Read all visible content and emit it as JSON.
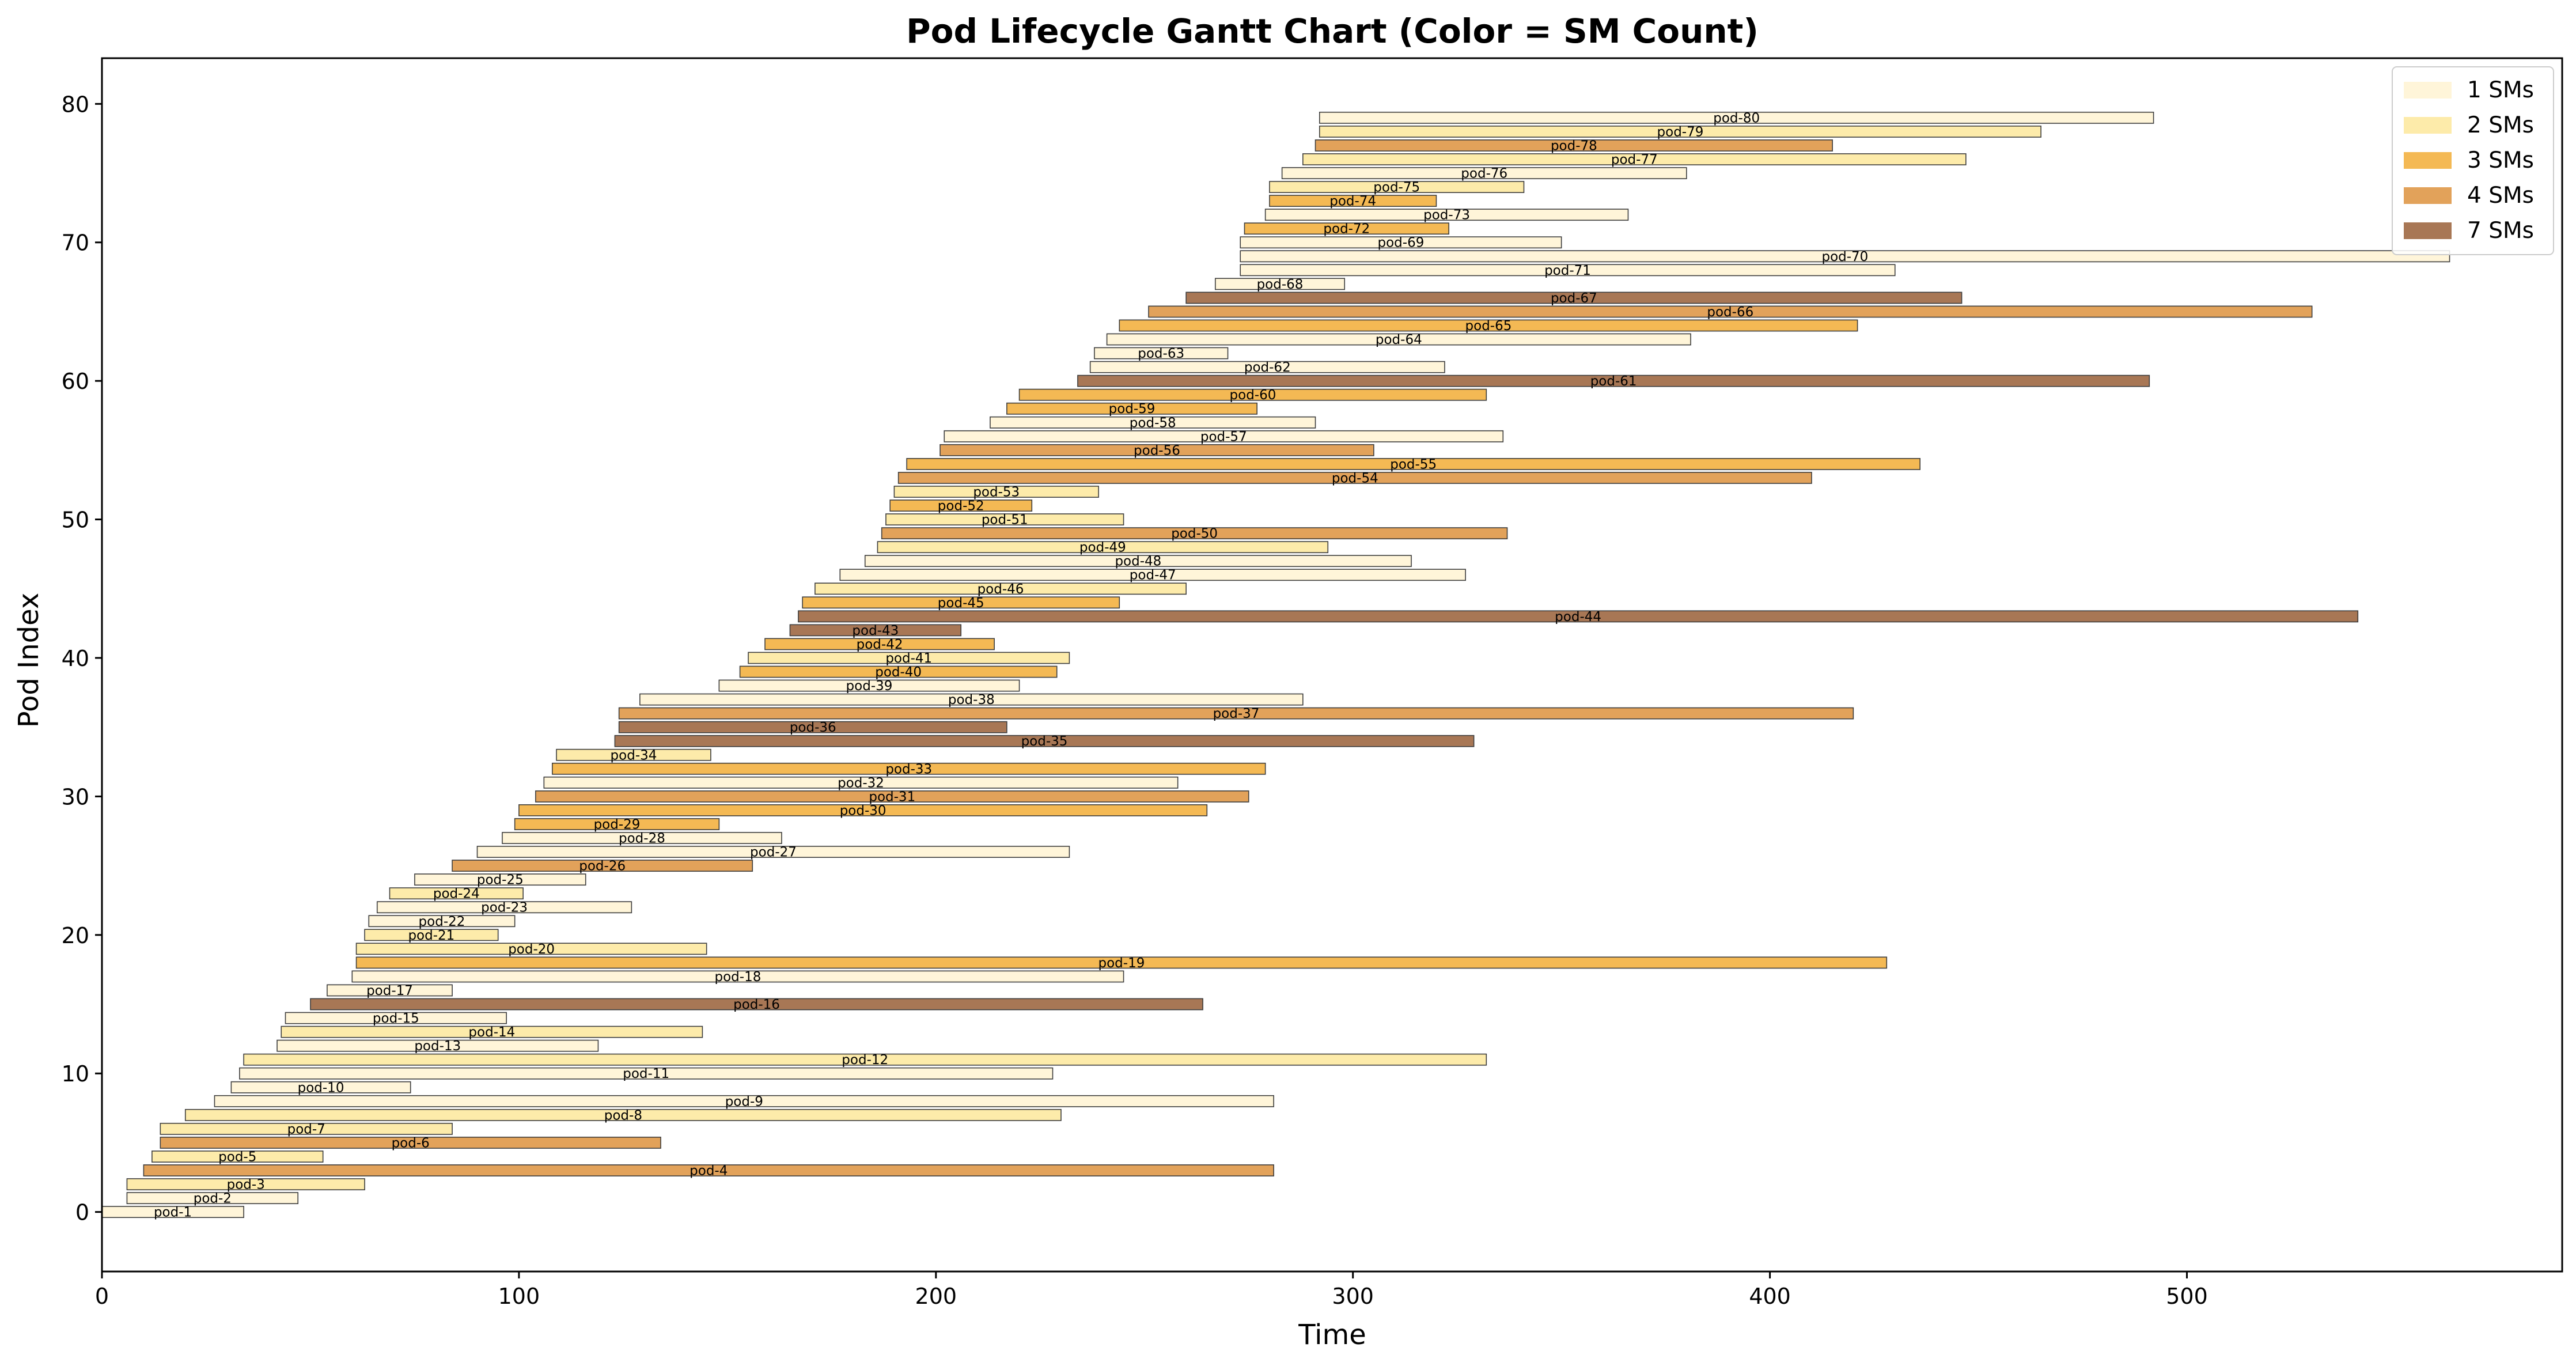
{
  "chart_data": {
    "type": "gantt",
    "title": "Pod Lifecycle Gantt Chart (Color = SM Count)",
    "xlabel": "Time",
    "ylabel": "Pod Index",
    "xlim": [
      0,
      590
    ],
    "ylim": [
      -4.3,
      83.3
    ],
    "xticks": [
      0,
      100,
      200,
      300,
      400,
      500
    ],
    "yticks": [
      0,
      10,
      20,
      30,
      40,
      50,
      60,
      70,
      80
    ],
    "grid": false,
    "legend_position": "top-right",
    "sm_colors": {
      "1": "#fff5d9",
      "2": "#fdebaa",
      "3": "#f4b954",
      "4": "#e2a25a",
      "7": "#a87755"
    },
    "legend": [
      {
        "sm": 1,
        "label": "1 SMs"
      },
      {
        "sm": 2,
        "label": "2 SMs"
      },
      {
        "sm": 3,
        "label": "3 SMs"
      },
      {
        "sm": 4,
        "label": "4 SMs"
      },
      {
        "sm": 7,
        "label": "7 SMs"
      }
    ],
    "pods": [
      {
        "name": "pod-1",
        "index": 0,
        "start": 0,
        "end": 34,
        "sm": 1
      },
      {
        "name": "pod-2",
        "index": 1,
        "start": 6,
        "end": 47,
        "sm": 1
      },
      {
        "name": "pod-3",
        "index": 2,
        "start": 6,
        "end": 63,
        "sm": 2
      },
      {
        "name": "pod-4",
        "index": 3,
        "start": 10,
        "end": 281,
        "sm": 4
      },
      {
        "name": "pod-5",
        "index": 4,
        "start": 12,
        "end": 53,
        "sm": 2
      },
      {
        "name": "pod-6",
        "index": 5,
        "start": 14,
        "end": 134,
        "sm": 4
      },
      {
        "name": "pod-7",
        "index": 6,
        "start": 14,
        "end": 84,
        "sm": 2
      },
      {
        "name": "pod-8",
        "index": 7,
        "start": 20,
        "end": 230,
        "sm": 2
      },
      {
        "name": "pod-9",
        "index": 8,
        "start": 27,
        "end": 281,
        "sm": 1
      },
      {
        "name": "pod-10",
        "index": 9,
        "start": 31,
        "end": 74,
        "sm": 1
      },
      {
        "name": "pod-11",
        "index": 10,
        "start": 33,
        "end": 228,
        "sm": 1
      },
      {
        "name": "pod-12",
        "index": 11,
        "start": 34,
        "end": 332,
        "sm": 2
      },
      {
        "name": "pod-13",
        "index": 12,
        "start": 42,
        "end": 119,
        "sm": 1
      },
      {
        "name": "pod-14",
        "index": 13,
        "start": 43,
        "end": 144,
        "sm": 2
      },
      {
        "name": "pod-15",
        "index": 14,
        "start": 44,
        "end": 97,
        "sm": 1
      },
      {
        "name": "pod-16",
        "index": 15,
        "start": 50,
        "end": 264,
        "sm": 7
      },
      {
        "name": "pod-17",
        "index": 16,
        "start": 54,
        "end": 84,
        "sm": 1
      },
      {
        "name": "pod-18",
        "index": 17,
        "start": 60,
        "end": 245,
        "sm": 1
      },
      {
        "name": "pod-19",
        "index": 18,
        "start": 61,
        "end": 428,
        "sm": 3
      },
      {
        "name": "pod-20",
        "index": 19,
        "start": 61,
        "end": 145,
        "sm": 2
      },
      {
        "name": "pod-21",
        "index": 20,
        "start": 63,
        "end": 95,
        "sm": 2
      },
      {
        "name": "pod-22",
        "index": 21,
        "start": 64,
        "end": 99,
        "sm": 1
      },
      {
        "name": "pod-23",
        "index": 22,
        "start": 66,
        "end": 127,
        "sm": 1
      },
      {
        "name": "pod-24",
        "index": 23,
        "start": 69,
        "end": 101,
        "sm": 2
      },
      {
        "name": "pod-25",
        "index": 24,
        "start": 75,
        "end": 116,
        "sm": 1
      },
      {
        "name": "pod-26",
        "index": 25,
        "start": 84,
        "end": 156,
        "sm": 4
      },
      {
        "name": "pod-27",
        "index": 26,
        "start": 90,
        "end": 232,
        "sm": 1
      },
      {
        "name": "pod-28",
        "index": 27,
        "start": 96,
        "end": 163,
        "sm": 1
      },
      {
        "name": "pod-29",
        "index": 28,
        "start": 99,
        "end": 148,
        "sm": 3
      },
      {
        "name": "pod-30",
        "index": 29,
        "start": 100,
        "end": 265,
        "sm": 3
      },
      {
        "name": "pod-31",
        "index": 30,
        "start": 104,
        "end": 275,
        "sm": 4
      },
      {
        "name": "pod-32",
        "index": 31,
        "start": 106,
        "end": 258,
        "sm": 1
      },
      {
        "name": "pod-33",
        "index": 32,
        "start": 108,
        "end": 279,
        "sm": 3
      },
      {
        "name": "pod-34",
        "index": 33,
        "start": 109,
        "end": 146,
        "sm": 2
      },
      {
        "name": "pod-35",
        "index": 34,
        "start": 123,
        "end": 329,
        "sm": 7
      },
      {
        "name": "pod-36",
        "index": 35,
        "start": 124,
        "end": 217,
        "sm": 7
      },
      {
        "name": "pod-37",
        "index": 36,
        "start": 124,
        "end": 420,
        "sm": 4
      },
      {
        "name": "pod-38",
        "index": 37,
        "start": 129,
        "end": 288,
        "sm": 1
      },
      {
        "name": "pod-39",
        "index": 38,
        "start": 148,
        "end": 220,
        "sm": 1
      },
      {
        "name": "pod-40",
        "index": 39,
        "start": 153,
        "end": 229,
        "sm": 3
      },
      {
        "name": "pod-41",
        "index": 40,
        "start": 155,
        "end": 232,
        "sm": 2
      },
      {
        "name": "pod-42",
        "index": 41,
        "start": 159,
        "end": 214,
        "sm": 3
      },
      {
        "name": "pod-43",
        "index": 42,
        "start": 165,
        "end": 206,
        "sm": 7
      },
      {
        "name": "pod-44",
        "index": 43,
        "start": 167,
        "end": 541,
        "sm": 7
      },
      {
        "name": "pod-45",
        "index": 44,
        "start": 168,
        "end": 244,
        "sm": 3
      },
      {
        "name": "pod-46",
        "index": 45,
        "start": 171,
        "end": 260,
        "sm": 2
      },
      {
        "name": "pod-47",
        "index": 46,
        "start": 177,
        "end": 327,
        "sm": 1
      },
      {
        "name": "pod-48",
        "index": 47,
        "start": 183,
        "end": 314,
        "sm": 1
      },
      {
        "name": "pod-49",
        "index": 48,
        "start": 186,
        "end": 294,
        "sm": 2
      },
      {
        "name": "pod-50",
        "index": 49,
        "start": 187,
        "end": 337,
        "sm": 4
      },
      {
        "name": "pod-51",
        "index": 50,
        "start": 188,
        "end": 245,
        "sm": 2
      },
      {
        "name": "pod-52",
        "index": 51,
        "start": 189,
        "end": 223,
        "sm": 3
      },
      {
        "name": "pod-53",
        "index": 52,
        "start": 190,
        "end": 239,
        "sm": 2
      },
      {
        "name": "pod-54",
        "index": 53,
        "start": 191,
        "end": 410,
        "sm": 4
      },
      {
        "name": "pod-55",
        "index": 54,
        "start": 193,
        "end": 436,
        "sm": 3
      },
      {
        "name": "pod-56",
        "index": 55,
        "start": 201,
        "end": 305,
        "sm": 4
      },
      {
        "name": "pod-57",
        "index": 56,
        "start": 202,
        "end": 336,
        "sm": 1
      },
      {
        "name": "pod-58",
        "index": 57,
        "start": 213,
        "end": 291,
        "sm": 1
      },
      {
        "name": "pod-59",
        "index": 58,
        "start": 217,
        "end": 277,
        "sm": 3
      },
      {
        "name": "pod-60",
        "index": 59,
        "start": 220,
        "end": 332,
        "sm": 3
      },
      {
        "name": "pod-61",
        "index": 60,
        "start": 234,
        "end": 491,
        "sm": 7
      },
      {
        "name": "pod-62",
        "index": 61,
        "start": 237,
        "end": 322,
        "sm": 1
      },
      {
        "name": "pod-63",
        "index": 62,
        "start": 238,
        "end": 270,
        "sm": 1
      },
      {
        "name": "pod-64",
        "index": 63,
        "start": 241,
        "end": 381,
        "sm": 1
      },
      {
        "name": "pod-65",
        "index": 64,
        "start": 244,
        "end": 421,
        "sm": 3
      },
      {
        "name": "pod-66",
        "index": 65,
        "start": 251,
        "end": 530,
        "sm": 4
      },
      {
        "name": "pod-67",
        "index": 66,
        "start": 260,
        "end": 446,
        "sm": 7
      },
      {
        "name": "pod-68",
        "index": 67,
        "start": 267,
        "end": 298,
        "sm": 1
      },
      {
        "name": "pod-71",
        "index": 68,
        "start": 273,
        "end": 430,
        "sm": 1
      },
      {
        "name": "pod-70",
        "index": 69,
        "start": 273,
        "end": 563,
        "sm": 1
      },
      {
        "name": "pod-69",
        "index": 70,
        "start": 273,
        "end": 350,
        "sm": 1
      },
      {
        "name": "pod-72",
        "index": 71,
        "start": 274,
        "end": 323,
        "sm": 3
      },
      {
        "name": "pod-73",
        "index": 72,
        "start": 279,
        "end": 366,
        "sm": 1
      },
      {
        "name": "pod-74",
        "index": 73,
        "start": 280,
        "end": 320,
        "sm": 3
      },
      {
        "name": "pod-75",
        "index": 74,
        "start": 280,
        "end": 341,
        "sm": 2
      },
      {
        "name": "pod-76",
        "index": 75,
        "start": 283,
        "end": 380,
        "sm": 1
      },
      {
        "name": "pod-77",
        "index": 76,
        "start": 288,
        "end": 447,
        "sm": 2
      },
      {
        "name": "pod-78",
        "index": 77,
        "start": 291,
        "end": 415,
        "sm": 4
      },
      {
        "name": "pod-79",
        "index": 78,
        "start": 292,
        "end": 465,
        "sm": 2
      },
      {
        "name": "pod-80",
        "index": 79,
        "start": 292,
        "end": 492,
        "sm": 1
      }
    ]
  }
}
